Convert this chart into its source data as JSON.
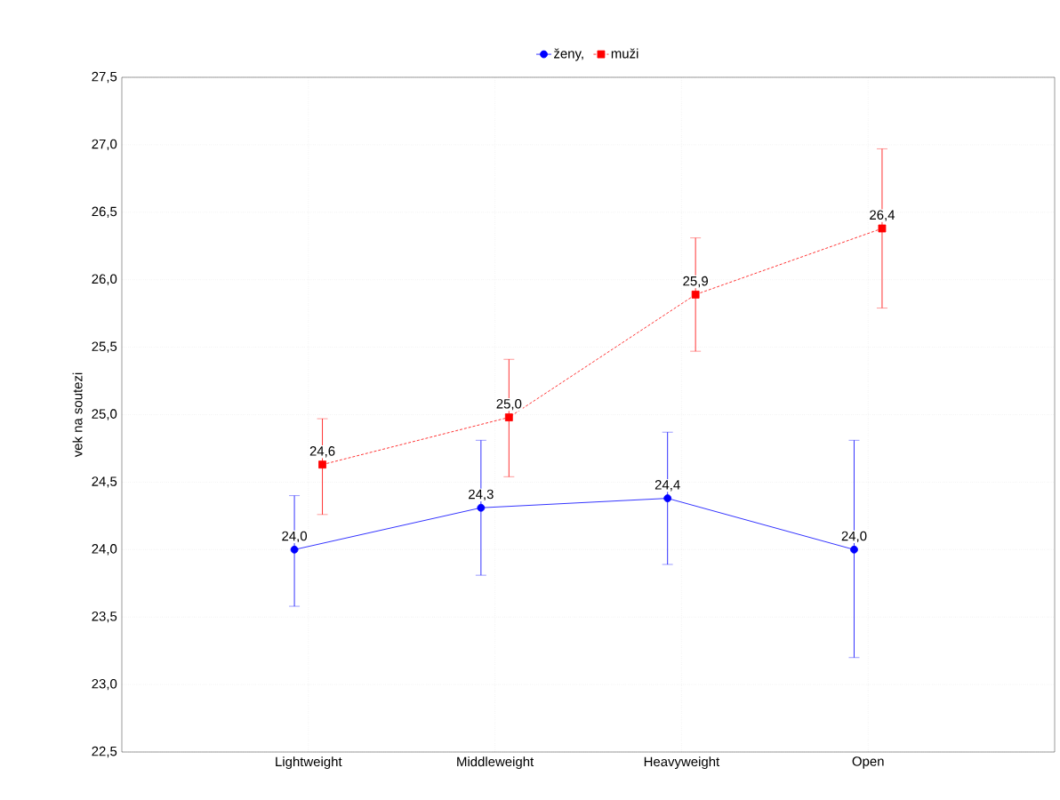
{
  "chart_data": {
    "type": "line",
    "ylabel": "vek na soutezi",
    "categories": [
      "Lightweight",
      "Middleweight",
      "Heavyweight",
      "Open"
    ],
    "ylim": [
      22.5,
      27.5
    ],
    "yticks": [
      {
        "value": 22.5,
        "label": "22,5"
      },
      {
        "value": 23.0,
        "label": "23,0"
      },
      {
        "value": 23.5,
        "label": "23,5"
      },
      {
        "value": 24.0,
        "label": "24,0"
      },
      {
        "value": 24.5,
        "label": "24,5"
      },
      {
        "value": 25.0,
        "label": "25,0"
      },
      {
        "value": 25.5,
        "label": "25,5"
      },
      {
        "value": 26.0,
        "label": "26,0"
      },
      {
        "value": 26.5,
        "label": "26,5"
      },
      {
        "value": 27.0,
        "label": "27,0"
      },
      {
        "value": 27.5,
        "label": "27,5"
      }
    ],
    "grid": true,
    "legend": "top",
    "series": [
      {
        "name": "ženy,",
        "color": "#0000ff",
        "marker": "circle",
        "line_style": "solid",
        "values": [
          24.0,
          24.31,
          24.38,
          24.0
        ],
        "errors": [
          [
            23.58,
            24.4
          ],
          [
            23.81,
            24.81
          ],
          [
            23.89,
            24.87
          ],
          [
            23.2,
            24.81
          ]
        ],
        "value_labels": [
          "24,0",
          "24,3",
          "24,4",
          "24,0"
        ]
      },
      {
        "name": "muži",
        "color": "#ff0000",
        "marker": "square",
        "line_style": "dashed",
        "values": [
          24.63,
          24.98,
          25.89,
          26.38
        ],
        "errors": [
          [
            24.26,
            24.97
          ],
          [
            24.54,
            25.41
          ],
          [
            25.47,
            26.31
          ],
          [
            25.79,
            26.97
          ]
        ],
        "value_labels": [
          "24,6",
          "25,0",
          "25,9",
          "26,4"
        ]
      }
    ]
  }
}
